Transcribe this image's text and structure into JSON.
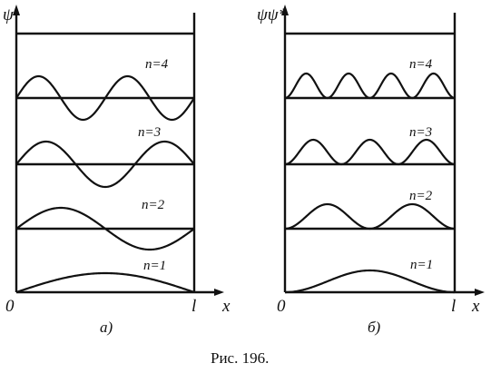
{
  "figure": {
    "caption": "Рис. 196.",
    "panels": [
      {
        "id": "a",
        "y_label": "ψ",
        "sublabel": "a)",
        "origin_label": "0",
        "end_label": "l",
        "x_label": "x",
        "shows": "psi",
        "levels": [
          {
            "n": 1,
            "label": "n=1"
          },
          {
            "n": 2,
            "label": "n=2"
          },
          {
            "n": 3,
            "label": "n=3"
          },
          {
            "n": 4,
            "label": "n=4"
          }
        ]
      },
      {
        "id": "b",
        "y_label": "ψψ*",
        "sublabel": "б)",
        "origin_label": "0",
        "end_label": "l",
        "x_label": "x",
        "shows": "psi_squared",
        "levels": [
          {
            "n": 1,
            "label": "n=1"
          },
          {
            "n": 2,
            "label": "n=2"
          },
          {
            "n": 3,
            "label": "n=3"
          },
          {
            "n": 4,
            "label": "n=4"
          }
        ]
      }
    ]
  }
}
